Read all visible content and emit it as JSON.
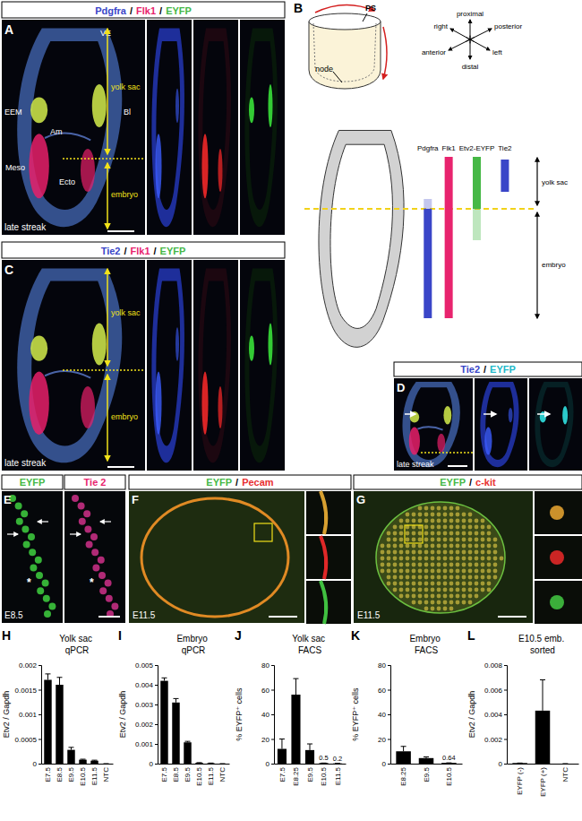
{
  "figure": {
    "panels": {
      "A": {
        "letter": "A",
        "header": [
          "Pdgfra",
          "Flk1",
          "EYFP"
        ],
        "header_colors": [
          "#3a46c8",
          "#e8246e",
          "#46b846"
        ],
        "separator": "/",
        "labels": [
          "VE",
          "EEM",
          "Am",
          "Bl",
          "Meso",
          "Ecto"
        ],
        "stage": "late streak",
        "regions": [
          "yolk sac",
          "embryo"
        ]
      },
      "B": {
        "letter": "B",
        "top_labels": [
          "PS",
          "node"
        ],
        "axes": [
          "proximal",
          "posterior",
          "right",
          "left",
          "anterior",
          "distal"
        ],
        "bars": [
          {
            "name": "Pdgfra",
            "color": "#3a46c8"
          },
          {
            "name": "Flk1",
            "color": "#e8246e"
          },
          {
            "name": "Etv2-EYFP",
            "color": "#46b846"
          },
          {
            "name": "Tie2",
            "color": "#3a46c8"
          }
        ],
        "regions": [
          "yolk sac",
          "embryo"
        ]
      },
      "C": {
        "letter": "C",
        "header": [
          "Tie2",
          "Flk1",
          "EYFP"
        ],
        "header_colors": [
          "#3a46c8",
          "#e8246e",
          "#46b846"
        ],
        "separator": "/",
        "stage": "late streak",
        "regions": [
          "yolk sac",
          "embryo"
        ]
      },
      "D": {
        "letter": "D",
        "header": [
          "Tie2",
          "EYFP"
        ],
        "header_colors": [
          "#3a46c8",
          "#20b8c8"
        ],
        "separator": "/",
        "stage": "late streak"
      },
      "E": {
        "letter": "E",
        "header": [
          "EYFP",
          "Tie 2"
        ],
        "header_colors": [
          "#46b846",
          "#e8246e"
        ],
        "stage": "E8.5",
        "asterisk": "*"
      },
      "F": {
        "letter": "F",
        "header": [
          "EYFP",
          "Pecam"
        ],
        "header_colors": [
          "#46b846",
          "#e83030"
        ],
        "separator": "/",
        "stage": "E11.5"
      },
      "G": {
        "letter": "G",
        "header": [
          "EYFP",
          "c-kit"
        ],
        "header_colors": [
          "#46b846",
          "#e83030"
        ],
        "separator": "/",
        "stage": "E11.5"
      }
    },
    "chart_letters": [
      "H",
      "I",
      "J",
      "K",
      "L"
    ]
  },
  "chart_data": [
    {
      "type": "bar",
      "title": "Yolk sac qPCR",
      "ylabel": "Etv2 / Gapdh",
      "categories": [
        "E7.5",
        "E8.5",
        "E9.5",
        "E10.5",
        "E11.5",
        "NTC"
      ],
      "values": [
        0.0017,
        0.0016,
        0.00028,
        8e-05,
        6e-05,
        0
      ],
      "errors": [
        0.00012,
        0.00015,
        5e-05,
        1e-05,
        1e-05,
        0
      ],
      "color": "#000000",
      "ylim": [
        0,
        0.002
      ],
      "yticks": [
        0,
        0.0005,
        0.001,
        0.0015,
        0.002
      ]
    },
    {
      "type": "bar",
      "title": "Embryo qPCR",
      "ylabel": "Etv2 / Gapdh",
      "categories": [
        "E7.5",
        "E8.5",
        "E9.5",
        "E10.5",
        "E11.5",
        "NTC"
      ],
      "values": [
        0.0042,
        0.0031,
        0.00108,
        4e-05,
        2e-05,
        0
      ],
      "errors": [
        0.00015,
        0.0002,
        5e-05,
        1e-05,
        1e-05,
        0
      ],
      "color": "#000000",
      "ylim": [
        0,
        0.005
      ],
      "yticks": [
        0,
        0.001,
        0.002,
        0.003,
        0.004,
        0.005
      ]
    },
    {
      "type": "bar",
      "title": "Yolk sac FACS",
      "ylabel": "% EYFP⁺ cells",
      "categories": [
        "E7.5",
        "E8.25",
        "E9.5",
        "E10.5",
        "E11.5"
      ],
      "values": [
        12,
        56,
        11,
        0.5,
        0.2
      ],
      "errors": [
        8,
        13,
        5,
        0,
        0
      ],
      "data_labels": true,
      "value_labels": [
        null,
        null,
        null,
        "0.5",
        "0.2"
      ],
      "color": "#000000",
      "ylim": [
        0,
        80
      ],
      "yticks": [
        0,
        20,
        40,
        60,
        80
      ]
    },
    {
      "type": "bar",
      "title": "Embryo FACS",
      "ylabel": "% EYFP⁺ cells",
      "categories": [
        "E8.25",
        "E9.5",
        "E10.5"
      ],
      "values": [
        10,
        4.5,
        0.64
      ],
      "errors": [
        4,
        1,
        0
      ],
      "data_labels": true,
      "value_labels": [
        null,
        null,
        "0.64"
      ],
      "color": "#000000",
      "ylim": [
        0,
        80
      ],
      "yticks": [
        0,
        20,
        40,
        60,
        80
      ]
    },
    {
      "type": "bar",
      "title": "E10.5 emb. sorted",
      "ylabel": "Etv2 / Gapdh",
      "categories": [
        "EYFP (-)",
        "EYFP (+)",
        "NTC"
      ],
      "values": [
        5e-05,
        0.0043,
        0
      ],
      "errors": [
        0,
        0.0025,
        0
      ],
      "color": "#000000",
      "ylim": [
        0,
        0.008
      ],
      "yticks": [
        0,
        0.002,
        0.004,
        0.006,
        0.008
      ]
    }
  ]
}
